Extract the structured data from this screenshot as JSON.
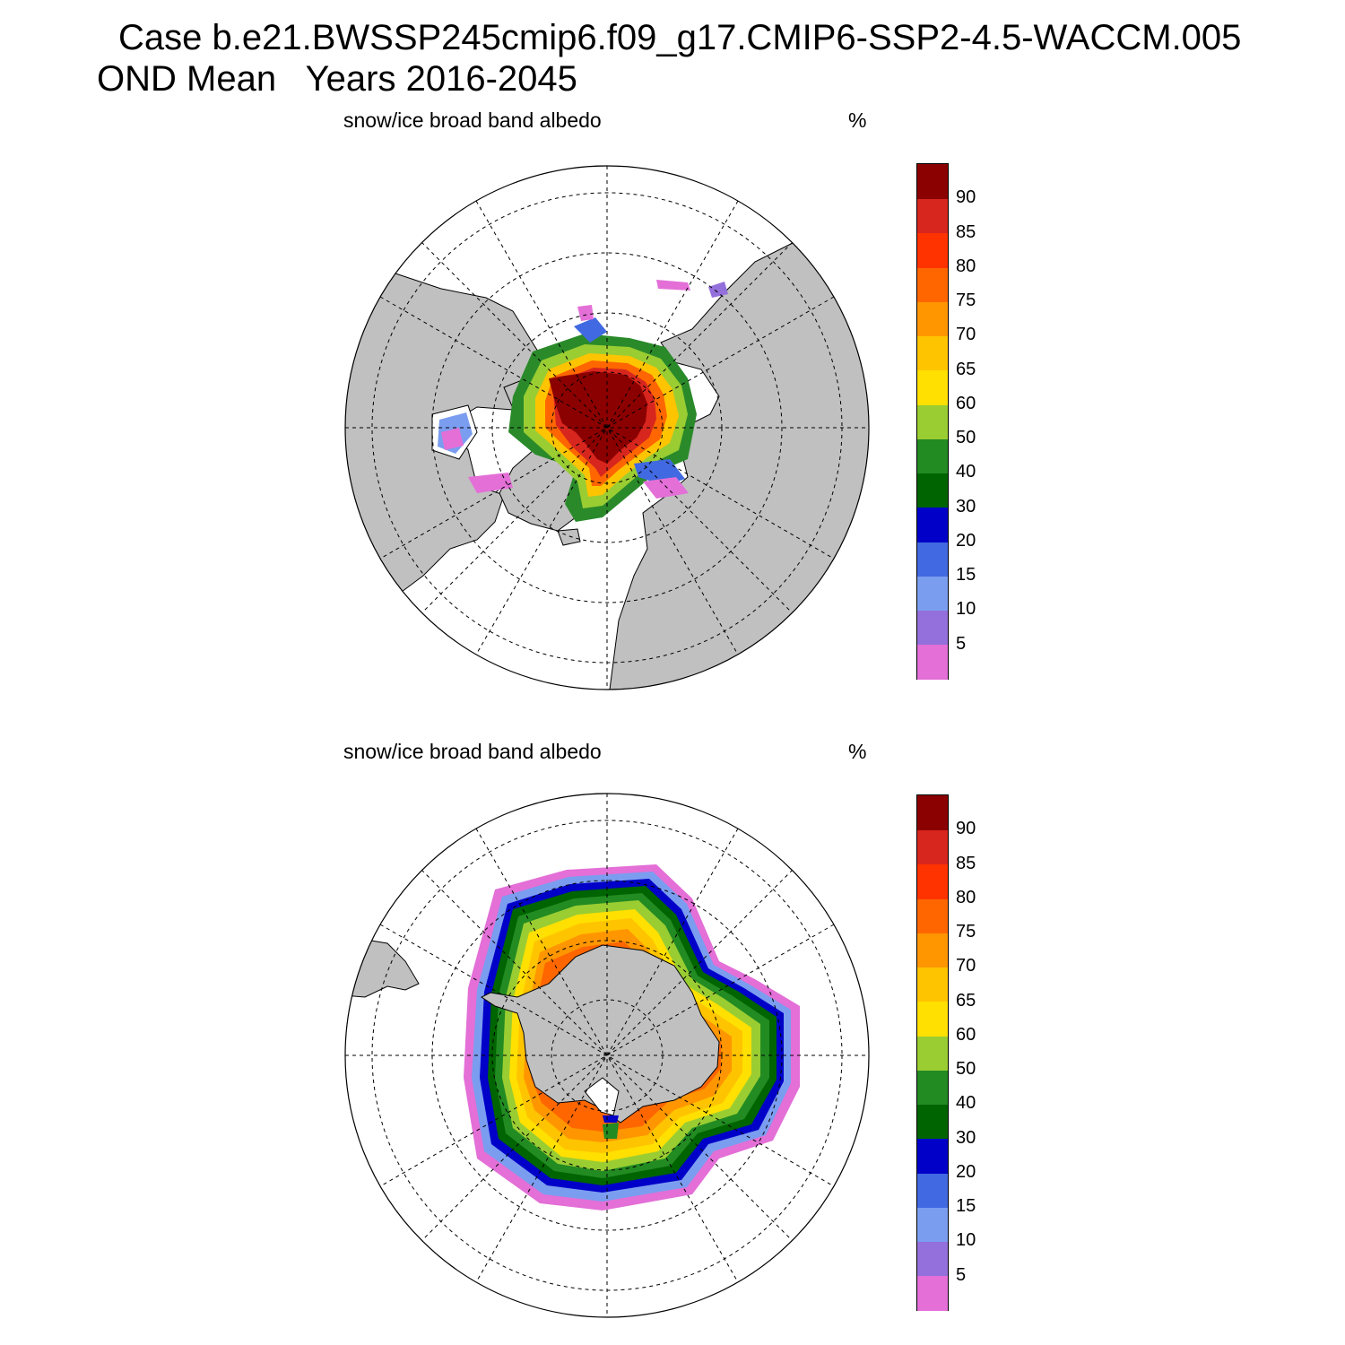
{
  "header": {
    "line1": "Case b.e21.BWSSP245cmip6.f09_g17.CMIP6-SSP2-4.5-WACCM.005",
    "line2": "OND Mean   Years 2016-2045"
  },
  "panels": [
    {
      "variable": "snow/ice broad band albedo",
      "units": "%",
      "hemisphere": "north"
    },
    {
      "variable": "snow/ice broad band albedo",
      "units": "%",
      "hemisphere": "south"
    }
  ],
  "colorbar": {
    "labels": [
      "5",
      "10",
      "15",
      "20",
      "30",
      "40",
      "50",
      "60",
      "65",
      "70",
      "75",
      "80",
      "85",
      "90"
    ],
    "colors": [
      "#e36fd7",
      "#9370db",
      "#7b9df0",
      "#4169e1",
      "#0000c8",
      "#006400",
      "#228b22",
      "#9acd32",
      "#ffe000",
      "#ffc400",
      "#ff9600",
      "#ff6600",
      "#ff3300",
      "#d7261e",
      "#8b0000"
    ]
  },
  "colors": {
    "land": "#c0c0c0",
    "ocean": "#ffffff"
  }
}
